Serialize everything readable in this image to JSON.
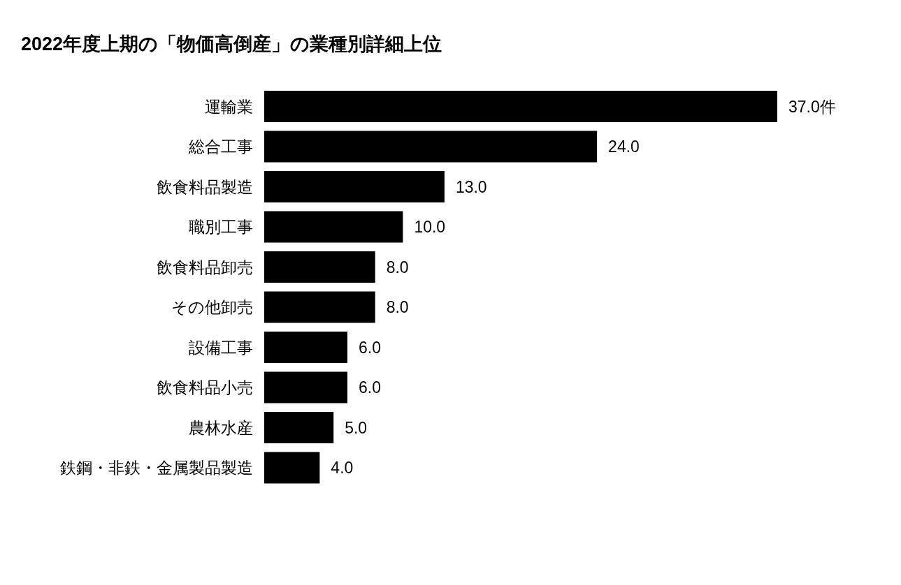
{
  "chart_data": {
    "type": "bar",
    "orientation": "horizontal",
    "title": "2022年度上期の「物価高倒産」の業種別詳細上位",
    "categories": [
      "運輸業",
      "総合工事",
      "飲食料品製造",
      "職別工事",
      "飲食料品卸売",
      "その他卸売",
      "設備工事",
      "飲食料品小売",
      "農林水産",
      "鉄鋼・非鉄・金属製品製造"
    ],
    "values": [
      37,
      24,
      13,
      10,
      8,
      8,
      6,
      6,
      5,
      4
    ],
    "value_labels": [
      "37.0件",
      "24.0",
      "13.0",
      "10.0",
      "8.0",
      "8.0",
      "6.0",
      "6.0",
      "5.0",
      "4.0"
    ],
    "color": "#000000"
  }
}
